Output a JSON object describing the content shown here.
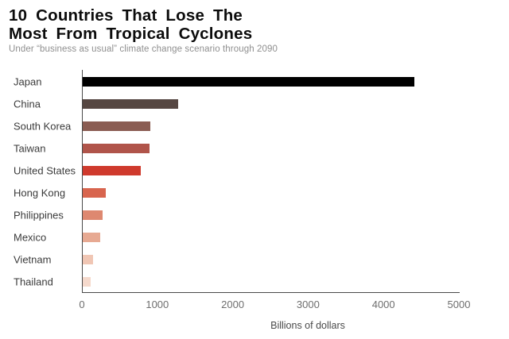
{
  "title": {
    "line1": "10 Countries That Lose The",
    "line2": "Most From Tropical Cyclones"
  },
  "subtitle": "Under “business as usual” climate change scenario through 2090",
  "chart_data": {
    "type": "bar",
    "orientation": "horizontal",
    "title": "10 Countries That Lose The Most From Tropical Cyclones",
    "subtitle": "Under “business as usual” climate change scenario through 2090",
    "xlabel": "Billions of dollars",
    "ylabel": "",
    "xlim": [
      0,
      5000
    ],
    "xticks": [
      0,
      1000,
      2000,
      3000,
      4000,
      5000
    ],
    "grid": false,
    "legend": false,
    "categories": [
      "Japan",
      "China",
      "South Korea",
      "Taiwan",
      "United States",
      "Hong Kong",
      "Philippines",
      "Mexico",
      "Vietnam",
      "Thailand"
    ],
    "values": [
      4400,
      1270,
      900,
      890,
      770,
      310,
      260,
      230,
      140,
      110
    ],
    "bar_colors": [
      "#000000",
      "#564742",
      "#8a5c52",
      "#b0544a",
      "#cf3a2d",
      "#d8654e",
      "#de8870",
      "#e7a992",
      "#f0c6b4",
      "#f5d9cc"
    ]
  }
}
